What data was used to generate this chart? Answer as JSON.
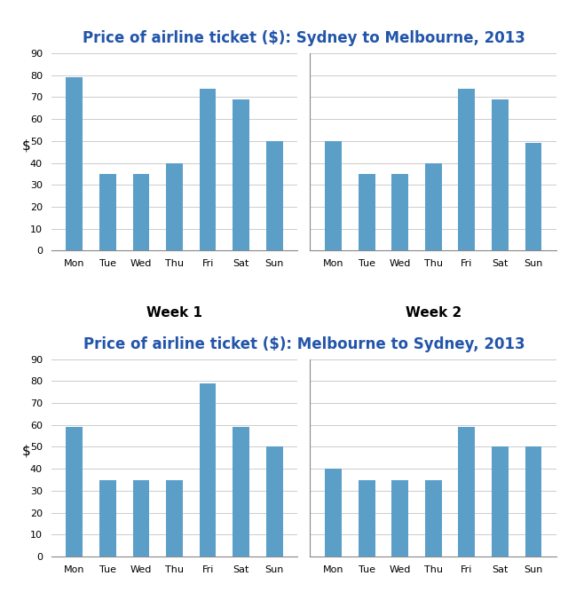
{
  "chart1_title": "Price of airline ticket ($): Sydney to Melbourne, 2013",
  "chart2_title": "Price of airline ticket ($): Melbourne to Sydney, 2013",
  "days": [
    "Mon",
    "Tue",
    "Wed",
    "Thu",
    "Fri",
    "Sat",
    "Sun"
  ],
  "chart1_week1": [
    79,
    35,
    35,
    40,
    74,
    69,
    50
  ],
  "chart1_week2": [
    50,
    35,
    35,
    40,
    74,
    69,
    49
  ],
  "chart2_week1": [
    59,
    35,
    35,
    35,
    79,
    59,
    50
  ],
  "chart2_week2": [
    40,
    35,
    35,
    35,
    59,
    50,
    50
  ],
  "bar_color": "#5b9fc9",
  "ylabel": "$",
  "week1_label": "Week 1",
  "week2_label": "Week 2",
  "ylim": [
    0,
    90
  ],
  "yticks": [
    0,
    10,
    20,
    30,
    40,
    50,
    60,
    70,
    80,
    90
  ],
  "title_color": "#2255aa",
  "title_fontsize": 12,
  "tick_fontsize": 8,
  "week_label_fontsize": 11,
  "ylabel_fontsize": 11,
  "background_color": "#ffffff",
  "grid_color": "#cccccc",
  "bar_width": 0.5
}
